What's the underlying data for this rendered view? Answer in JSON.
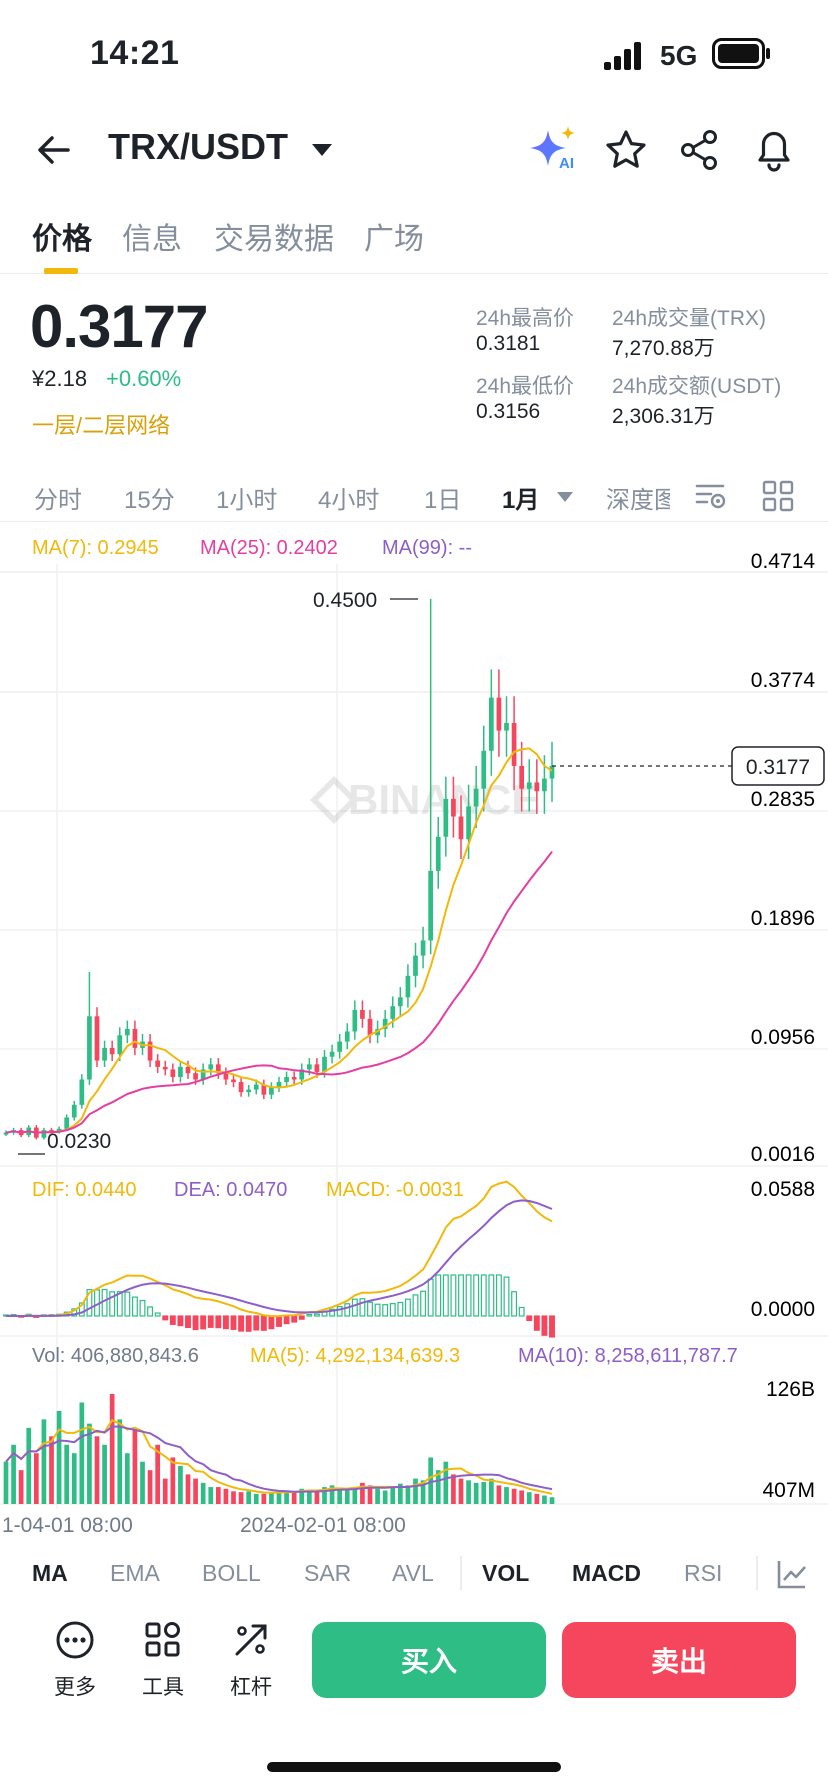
{
  "status": {
    "time": "14:21",
    "network": "5G"
  },
  "header": {
    "pair": "TRX/USDT",
    "ai_label": "AI"
  },
  "tabs": [
    "价格",
    "信息",
    "交易数据",
    "广场"
  ],
  "ticker": {
    "price": "0.3177",
    "cny": "¥2.18",
    "change": "+0.60%",
    "network": "一层/二层网络",
    "high_label": "24h最高价",
    "high": "0.3181",
    "low_label": "24h最低价",
    "low": "0.3156",
    "vol_label": "24h成交量(TRX)",
    "vol": "7,270.88万",
    "turnover_label": "24h成交额(USDT)",
    "turnover": "2,306.31万"
  },
  "intervals": [
    "分时",
    "15分",
    "1小时",
    "4小时",
    "1日",
    "1月",
    "深度图"
  ],
  "chart_legend": {
    "ma7": "MA(7): 0.2945",
    "ma25": "MA(25): 0.2402",
    "ma99": "MA(99): --",
    "dif": "DIF: 0.0440",
    "dea": "DEA: 0.0470",
    "macd": "MACD: -0.0031",
    "vol": "Vol: 406,880,843.6",
    "vma5": "MA(5): 4,292,134,639.3",
    "vma10": "MA(10): 8,258,611,787.7"
  },
  "price_axis": [
    "0.4714",
    "0.3774",
    "0.2835",
    "0.1896",
    "0.0956",
    "0.0016"
  ],
  "macd_axis": [
    "0.0588",
    "0.0000"
  ],
  "vol_axis": [
    "126B",
    "407M"
  ],
  "time_axis": [
    "1-04-01 08:00",
    "2024-02-01 08:00"
  ],
  "annotations": {
    "high": "0.4500",
    "low": "0.0230",
    "last": "0.3177"
  },
  "watermark": "BINANCE",
  "colors": {
    "up": "#2ebd85",
    "down": "#f6465d",
    "ma7": "#f0b90b",
    "ma25": "#e43ea4",
    "ma99": "#8e5ec9",
    "accent": "#f0b90b"
  },
  "indicators": [
    "MA",
    "EMA",
    "BOLL",
    "SAR",
    "AVL",
    "VOL",
    "MACD",
    "RSI"
  ],
  "tools": [
    "更多",
    "工具",
    "杠杆"
  ],
  "actions": {
    "buy": "买入",
    "sell": "卖出"
  }
}
